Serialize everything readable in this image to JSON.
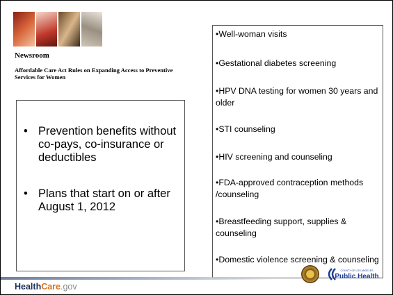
{
  "header": {
    "section": "Newsroom",
    "title": "Affordable Care Act Rules on Expanding Access to Preventive Services for Women"
  },
  "left_bullets": [
    "Prevention benefits without co-pays, co-insurance or deductibles",
    "Plans that start on or after August 1, 2012"
  ],
  "right_bullets": [
    "Well-woman visits",
    "Gestational diabetes screening",
    "HPV DNA testing for women 30 years and older",
    "STI counseling",
    "HIV screening and counseling",
    "FDA-approved contraception methods /counseling",
    "Breastfeeding support, supplies & counseling",
    "Domestic violence screening & counseling"
  ],
  "footer": {
    "brand_a": "Health",
    "brand_b": "Care",
    "brand_c": ".gov"
  },
  "logo": {
    "county": "COUNTY OF LOS ANGELES",
    "name": "Public Health"
  }
}
